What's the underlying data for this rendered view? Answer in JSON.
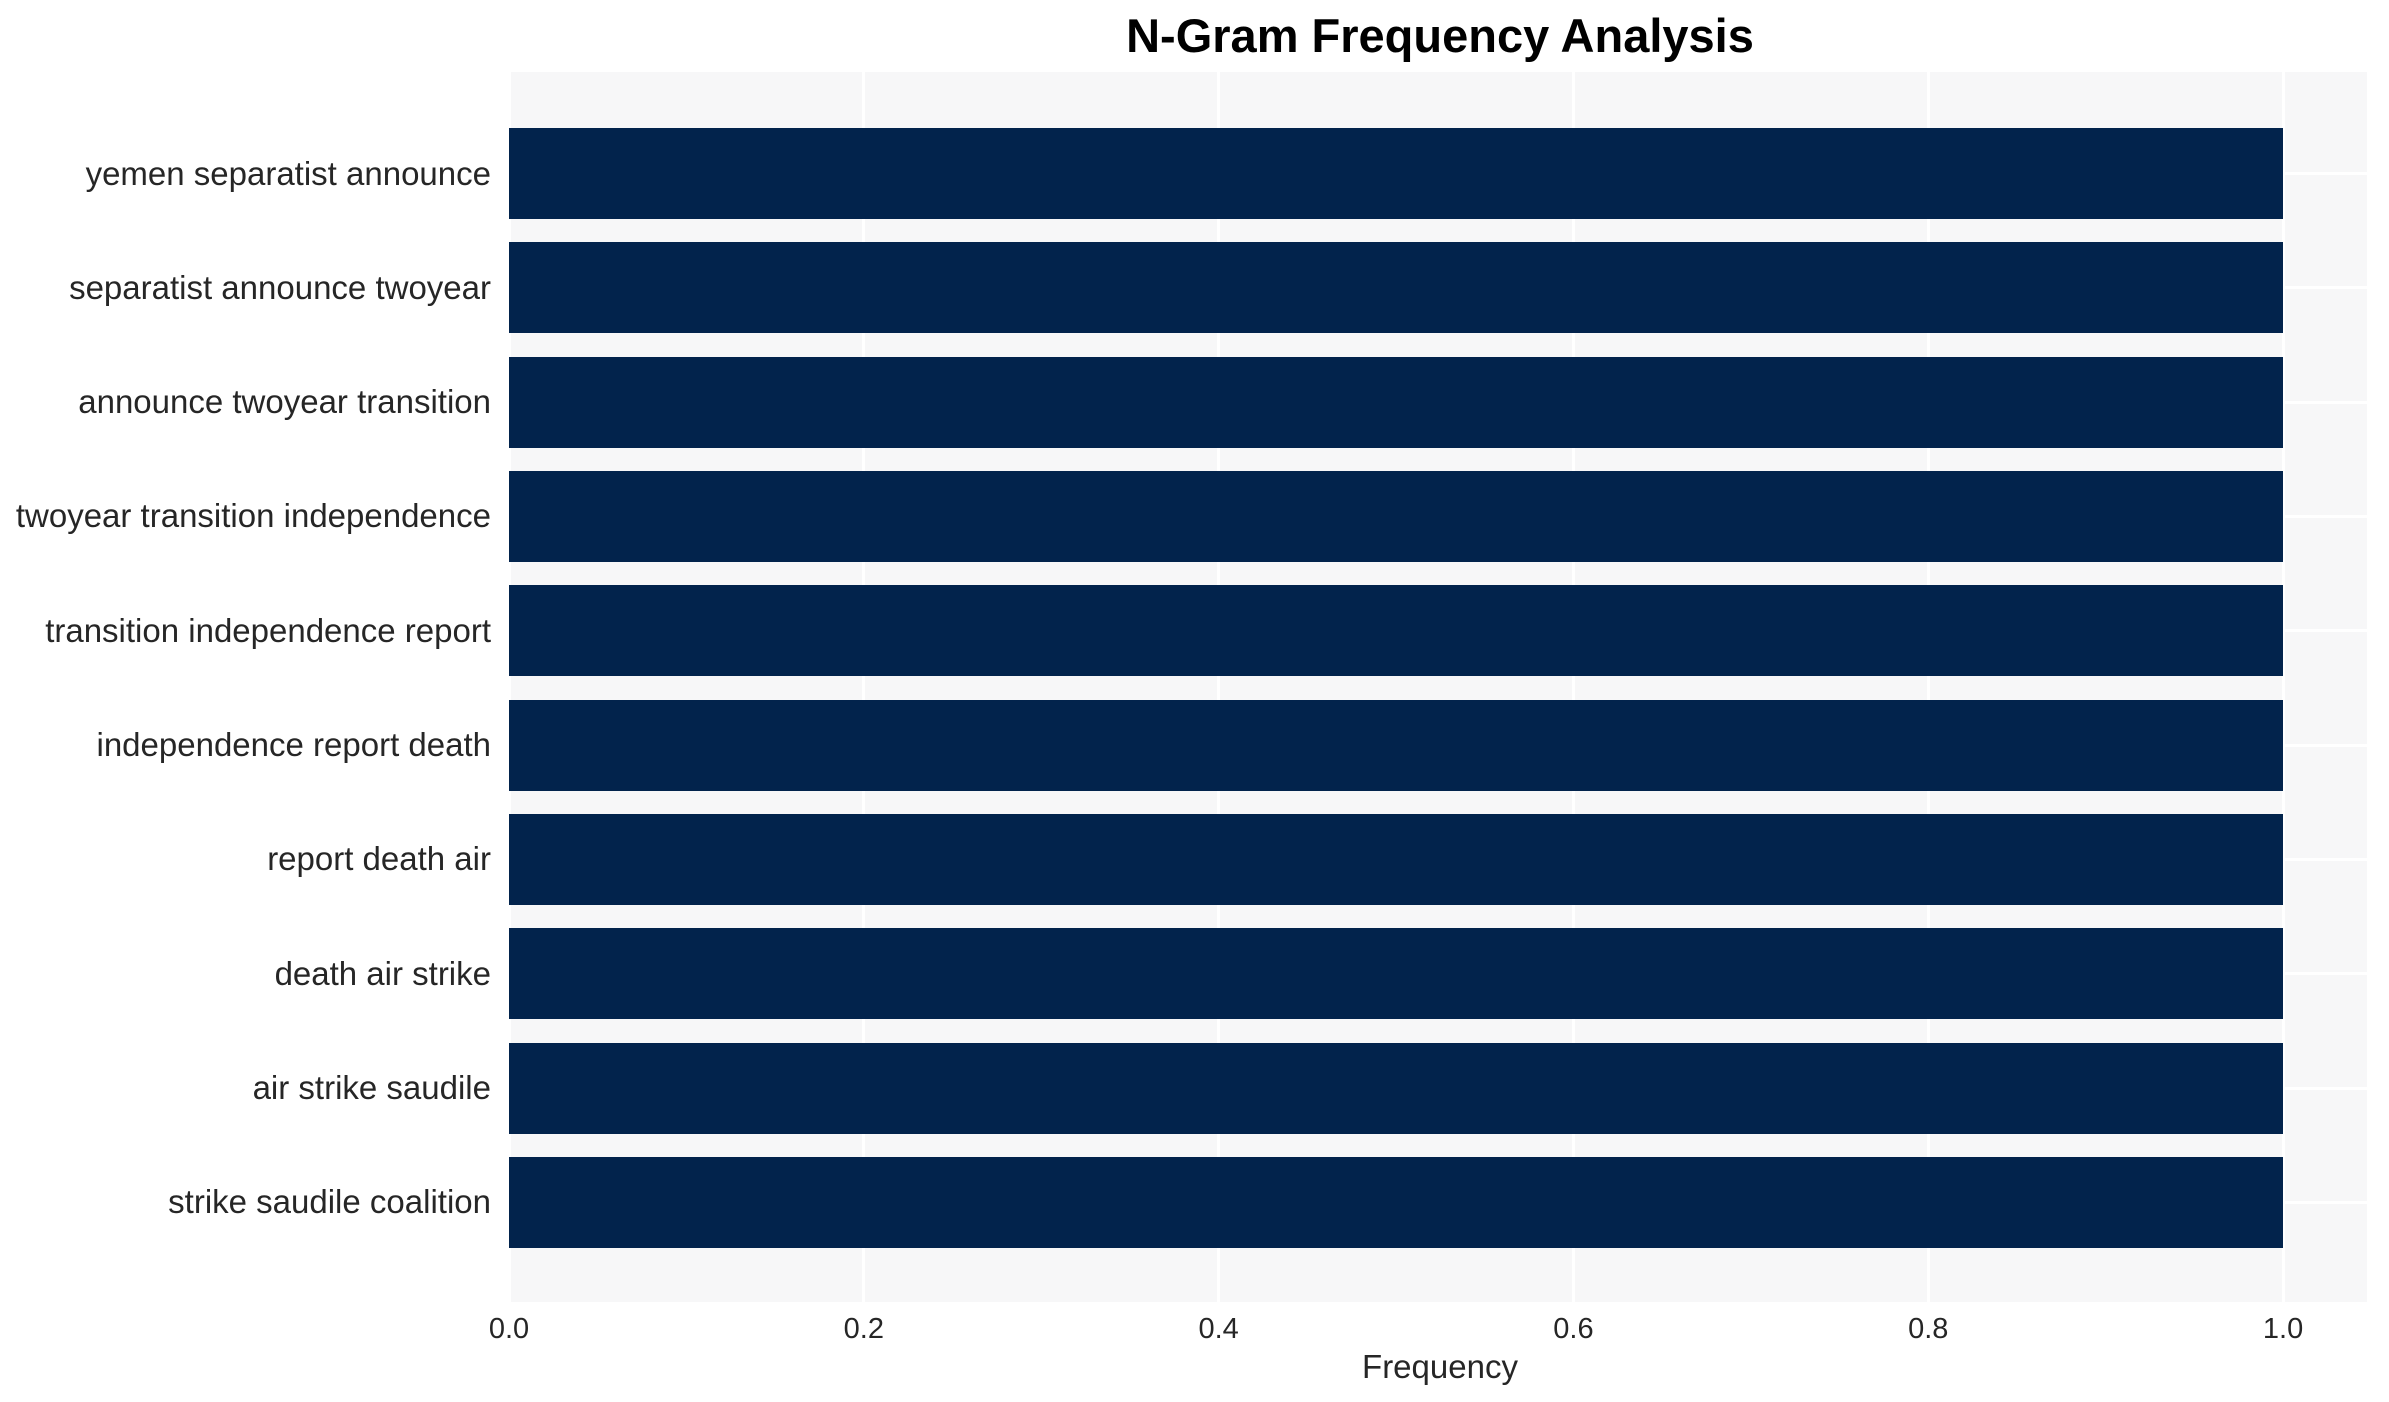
{
  "chart_data": {
    "type": "bar",
    "orientation": "horizontal",
    "title": "N-Gram Frequency Analysis",
    "xlabel": "Frequency",
    "ylabel": "",
    "categories": [
      "yemen separatist announce",
      "separatist announce twoyear",
      "announce twoyear transition",
      "twoyear transition independence",
      "transition independence report",
      "independence report death",
      "report death air",
      "death air strike",
      "air strike saudile",
      "strike saudile coalition"
    ],
    "values": [
      1.0,
      1.0,
      1.0,
      1.0,
      1.0,
      1.0,
      1.0,
      1.0,
      1.0,
      1.0
    ],
    "x_ticks": [
      0.0,
      0.2,
      0.4,
      0.6,
      0.8,
      1.0
    ],
    "x_tick_labels": [
      "0.0",
      "0.2",
      "0.4",
      "0.6",
      "0.8",
      "1.0"
    ],
    "xlim": [
      0.0,
      1.0473
    ],
    "grid": true,
    "legend": false,
    "bar_color": "#02234c",
    "plot_bg_color": "#f7f7f8",
    "grid_color": "#ffffff",
    "text_color": "#262626",
    "title_color": "#000000"
  }
}
